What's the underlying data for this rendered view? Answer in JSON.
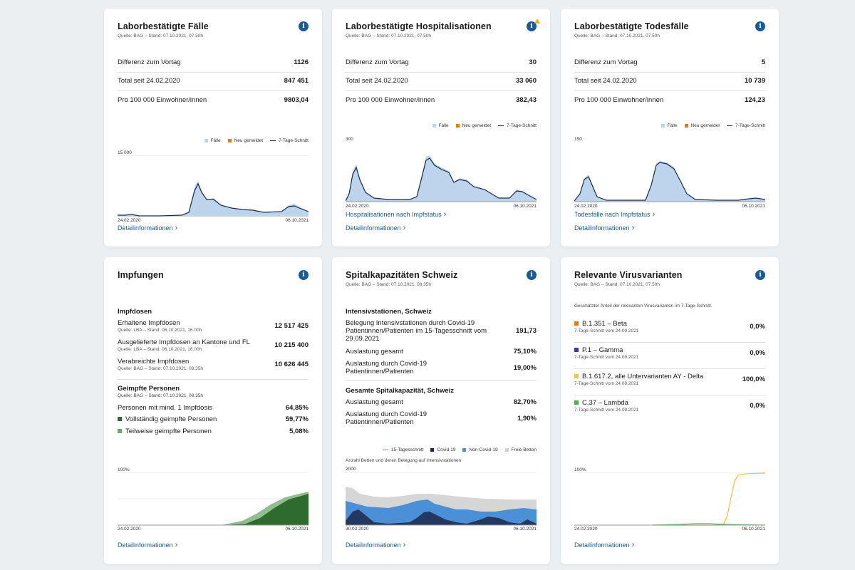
{
  "cards": {
    "cases": {
      "title": "Laborbestätigte Fälle",
      "source": "Quelle: BAG – Stand: 07.10.2021, 07.50h",
      "rows": [
        {
          "label": "Differenz zum Vortag",
          "value": "1126"
        },
        {
          "label": "Total seit 24.02.2020",
          "value": "847 451"
        },
        {
          "label": "Pro 100 000 Einwohner/innen",
          "value": "9803,04"
        }
      ],
      "legend": [
        "Fälle",
        "Neu gemeldet",
        "7-Tage-Schnitt"
      ],
      "ymax": "15 000",
      "xstart": "24.02.2020",
      "xend": "06.10.2021",
      "detail_link": "Detailinformationen"
    },
    "hosp": {
      "title": "Laborbestätigte Hospitalisationen",
      "source": "Quelle: BAG – Stand: 07.10.2021, 07.50h",
      "rows": [
        {
          "label": "Differenz zum Vortag",
          "value": "30"
        },
        {
          "label": "Total seit 24.02.2020",
          "value": "33 060"
        },
        {
          "label": "Pro 100 000 Einwohner/innen",
          "value": "382,43"
        }
      ],
      "legend": [
        "Fälle",
        "Neu gemeldet",
        "7-Tage-Schnitt"
      ],
      "ymax": "300",
      "xstart": "24.02.2020",
      "xend": "06.10.2021",
      "extra_link": "Hospitalisationen nach Impfstatus",
      "detail_link": "Detailinformationen"
    },
    "deaths": {
      "title": "Laborbestätigte Todesfälle",
      "source": "Quelle: BAG – Stand: 07.10.2021, 07.50h",
      "rows": [
        {
          "label": "Differenz zum Vortag",
          "value": "5"
        },
        {
          "label": "Total seit 24.02.2020",
          "value": "10 739"
        },
        {
          "label": "Pro 100 000 Einwohner/innen",
          "value": "124,23"
        }
      ],
      "legend": [
        "Fälle",
        "Neu gemeldet",
        "7-Tage-Schnitt"
      ],
      "ymax": "150",
      "xstart": "24.02.2020",
      "xend": "06.10.2021",
      "extra_link": "Todesfälle nach Impfstatus",
      "detail_link": "Detailinformationen"
    },
    "vacc": {
      "title": "Impfungen",
      "doses_heading": "Impfdosen",
      "doses": [
        {
          "label": "Erhaltene Impfdosen",
          "source": "Quelle: LBA – Stand: 06.10.2021, 16.00h",
          "value": "12 517 425"
        },
        {
          "label": "Ausgelieferte Impfdosen an Kantone und FL",
          "source": "Quelle: LBA – Stand: 06.10.2021, 16.00h",
          "value": "10 215 400"
        },
        {
          "label": "Verabreichte Impfdosen",
          "source": "Quelle: BAG – Stand: 07.10.2021, 08.35h",
          "value": "10 626 445"
        }
      ],
      "people_heading": "Geimpfte Personen",
      "people_source": "Quelle: BAG – Stand: 07.10.2021, 08.35h",
      "people": [
        {
          "label": "Personen mit mind. 1 Impfdosis",
          "value": "64,85%"
        },
        {
          "label": "Vollständig geimpfte Personen",
          "value": "59,77%",
          "color": "#2e6b2e"
        },
        {
          "label": "Teilweise geimpfte Personen",
          "value": "5,08%",
          "color": "#6aa66a"
        }
      ],
      "ymax": "100%",
      "xstart": "24.02.2020",
      "xend": "06.10.2021",
      "detail_link": "Detailinformationen"
    },
    "hospcap": {
      "title": "Spitalkapazitäten Schweiz",
      "source": "Quelle: BAG – Stand: 07.10.2021, 08.35h",
      "icu_heading": "Intensivstationen, Schweiz",
      "icu": [
        {
          "label": "Belegung Intensivstationen durch Covid-19 Patientinnen/Patienten im 15-Tagesschnitt vom 29.09.2021",
          "value": "191,73"
        },
        {
          "label": "Auslastung gesamt",
          "value": "75,10%"
        },
        {
          "label": "Auslastung durch Covid-19 Patientinnen/Patienten",
          "value": "19,00%"
        }
      ],
      "total_heading": "Gesamte Spitalkapazität, Schweiz",
      "total": [
        {
          "label": "Auslastung gesamt",
          "value": "82,70%"
        },
        {
          "label": "Auslastung durch Covid-19 Patientinnen/Patienten",
          "value": "1,90%"
        }
      ],
      "legend": [
        "15-Tagesschnitt",
        "Covid-19",
        "Non-Covid-19",
        "Freie Betten"
      ],
      "chart_note": "Anzahl Betten und deren Belegung auf Intensivstationen",
      "ymax": "2000",
      "xstart": "30.03.2020",
      "xend": "06.10.2021",
      "detail_link": "Detailinformationen"
    },
    "variants": {
      "title": "Relevante Virusvarianten",
      "source": "Quelle: BAG – Stand: 07.10.2021, 07.50h",
      "note": "Geschätzter Anteil der relevanten Virusvarianten im 7-Tage-Schnitt.",
      "items": [
        {
          "label": "B.1.351 – Beta",
          "sub": "7-Tage-Schnitt vom 24.09.2021",
          "value": "0,0%",
          "color": "#e07b1a"
        },
        {
          "label": "P.1 – Gamma",
          "sub": "7-Tage-Schnitt vom 24.09.2021",
          "value": "0,0%",
          "color": "#3b3b8f"
        },
        {
          "label": "B.1.617.2, alle Untervarianten AY - Delta",
          "sub": "7-Tage-Schnitt vom 24.09.2021",
          "value": "100,0%",
          "color": "#f2c24a"
        },
        {
          "label": "C.37 – Lambda",
          "sub": "7-Tage-Schnitt vom 24.09.2021",
          "value": "0,0%",
          "color": "#4caf50"
        }
      ],
      "ymax": "100%",
      "xstart": "24.02.2020",
      "xend": "06.10.2021",
      "detail_link": "Detailinformationen"
    }
  },
  "colors": {
    "accent": "#1a5a96",
    "bars": "#bcd4ec",
    "new": "#e07b1a",
    "line": "#1c2a4a"
  }
}
